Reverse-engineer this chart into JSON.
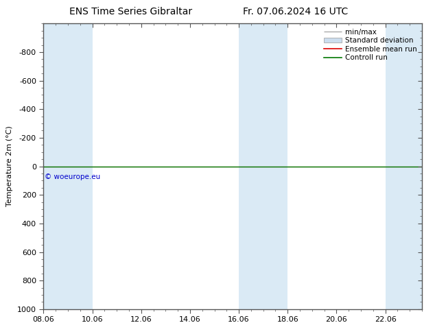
{
  "title_left": "ENS Time Series Gibraltar",
  "title_right": "Fr. 07.06.2024 16 UTC",
  "ylabel": "Temperature 2m (°C)",
  "ylim_top": -1000,
  "ylim_bottom": 1000,
  "yticks": [
    -800,
    -600,
    -400,
    -200,
    0,
    200,
    400,
    600,
    800,
    1000
  ],
  "xtick_labels": [
    "08.06",
    "10.06",
    "12.06",
    "14.06",
    "16.06",
    "18.06",
    "20.06",
    "22.06"
  ],
  "xtick_positions": [
    0,
    2,
    4,
    6,
    8,
    10,
    12,
    14
  ],
  "xlim": [
    0,
    15.5
  ],
  "shaded_bands": [
    [
      0,
      1.5
    ],
    [
      1.5,
      2.5
    ],
    [
      7.5,
      8.5
    ],
    [
      8.5,
      9.5
    ],
    [
      13.5,
      14.5
    ],
    [
      14.5,
      15.5
    ]
  ],
  "shaded_color": "#daeaf5",
  "flat_line_color_ensemble": "#dd0000",
  "flat_line_color_control": "#007700",
  "copyright_text": "© woeurope.eu",
  "copyright_color": "#0000cc",
  "legend_entries": [
    "min/max",
    "Standard deviation",
    "Ensemble mean run",
    "Controll run"
  ],
  "background_color": "#ffffff",
  "axes_edge_color": "#555555",
  "tick_color": "#555555",
  "font_size": 8,
  "title_font_size": 10
}
